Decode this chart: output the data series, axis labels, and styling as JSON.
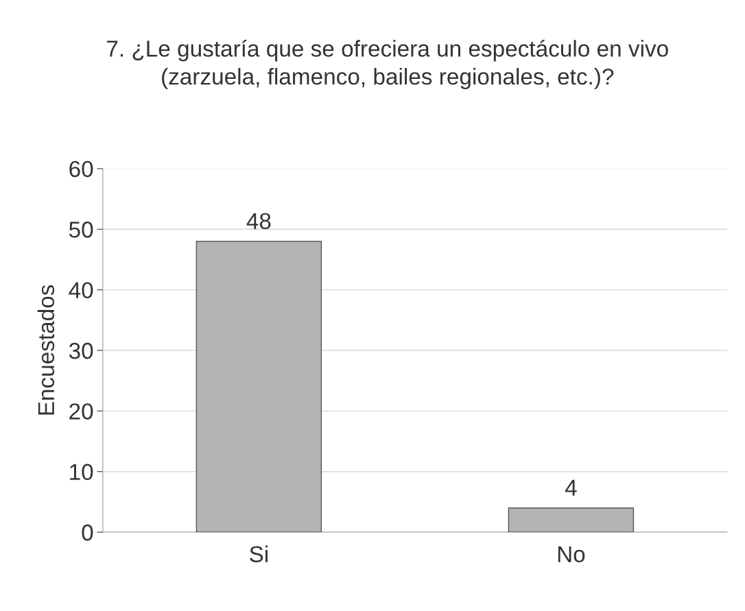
{
  "chart_data": {
    "type": "bar",
    "title": "7. ¿Le gustaría que se ofreciera un espectáculo en vivo\n(zarzuela, flamenco, bailes regionales, etc.)?",
    "ylabel": "Encuestados",
    "categories": [
      "Si",
      "No"
    ],
    "values": [
      48,
      4
    ],
    "color": "#b4b4b4",
    "ylim": [
      0,
      60
    ],
    "yticks": [
      0,
      10,
      20,
      30,
      40,
      50,
      60
    ],
    "grid": "y",
    "data_labels": true
  }
}
